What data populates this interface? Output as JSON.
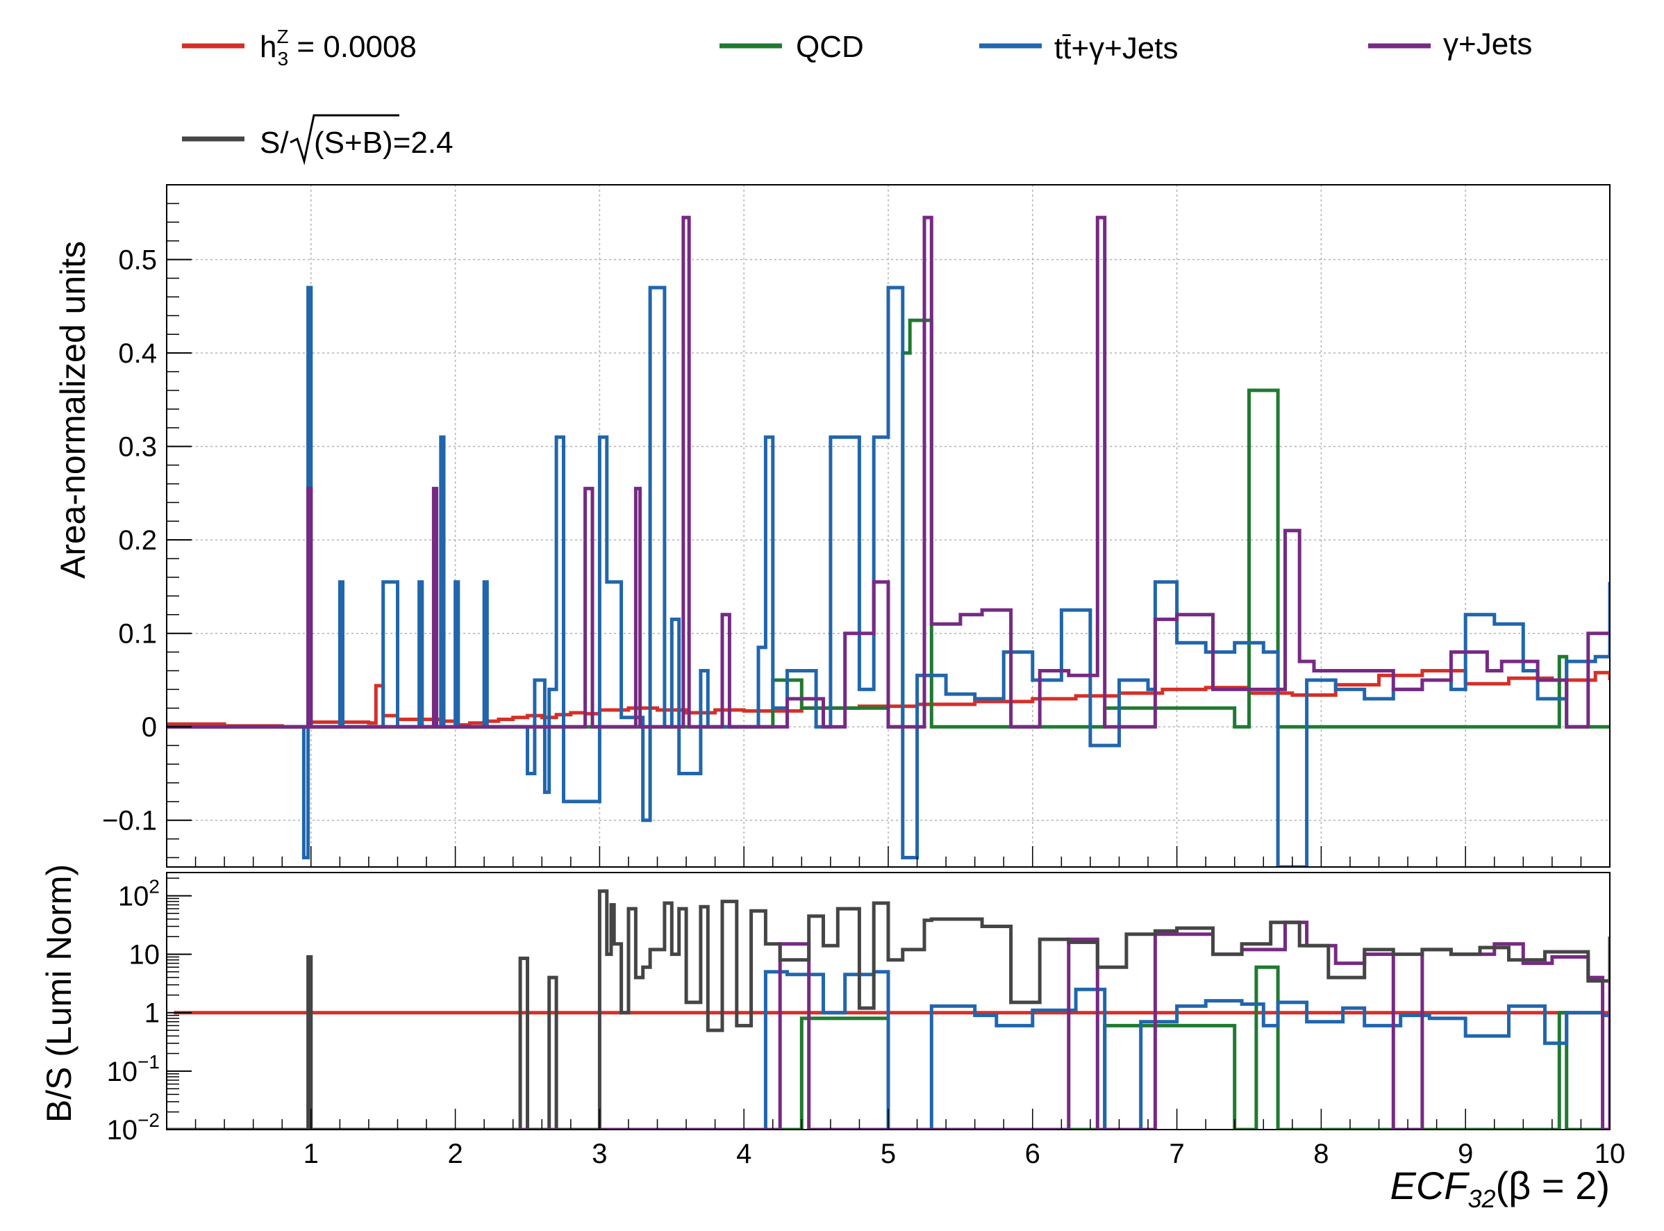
{
  "legend": {
    "signal_h": "h",
    "signal_sup": "Z",
    "signal_sub": "3",
    "signal_value": " = 0.0008",
    "qcd": "QCD",
    "ttgamma": "tt̄+γ+Jets",
    "gammajets": "γ+Jets",
    "significance_prefix": "S/",
    "significance_radicand": "(S+B)=2.4"
  },
  "chart_data": [
    {
      "type": "line",
      "panel": "top",
      "ylabel": "Area-normalized units",
      "xlim": [
        0,
        10
      ],
      "ylim": [
        -0.15,
        0.58
      ],
      "grid": true,
      "legend_position": "top",
      "x_ticks": [
        "1",
        "2",
        "3",
        "4",
        "5",
        "6",
        "7",
        "8",
        "9",
        "10"
      ],
      "y_ticks": [
        {
          "value": -0.1,
          "label": "−0.1"
        },
        {
          "value": 0,
          "label": "0"
        },
        {
          "value": 0.1,
          "label": "0.1"
        },
        {
          "value": 0.2,
          "label": "0.2"
        },
        {
          "value": 0.3,
          "label": "0.3"
        },
        {
          "value": 0.4,
          "label": "0.4"
        },
        {
          "value": 0.5,
          "label": "0.5"
        }
      ],
      "series": [
        {
          "name": "h3Z = 0.0008",
          "color": "#d62f27",
          "x": [
            0,
            0.4,
            0.8,
            1.0,
            1.4,
            1.45,
            1.5,
            1.6,
            1.9,
            2.0,
            2.1,
            2.2,
            2.3,
            2.4,
            2.5,
            2.6,
            2.7,
            2.8,
            2.9,
            3.0,
            3.2,
            3.4,
            3.6,
            3.8,
            4.0,
            4.4,
            4.8,
            5.2,
            5.6,
            6.0,
            6.3,
            6.6,
            6.9,
            7.2,
            7.5,
            7.8,
            8.1,
            8.4,
            8.7,
            9.0,
            9.3,
            9.6,
            9.9,
            10.0
          ],
          "y": [
            0.003,
            0.001,
            0.0,
            0.005,
            0.004,
            0.044,
            0.012,
            0.008,
            0.006,
            0.002,
            0.004,
            0.006,
            0.008,
            0.01,
            0.012,
            0.01,
            0.013,
            0.015,
            0.014,
            0.018,
            0.02,
            0.018,
            0.015,
            0.018,
            0.017,
            0.02,
            0.022,
            0.024,
            0.027,
            0.03,
            0.033,
            0.036,
            0.04,
            0.042,
            0.036,
            0.034,
            0.045,
            0.055,
            0.06,
            0.046,
            0.052,
            0.05,
            0.058,
            0.05
          ]
        },
        {
          "name": "QCD",
          "color": "#1f7a30",
          "x": [
            0,
            4.0,
            4.2,
            4.4,
            5.0,
            5.1,
            5.15,
            5.3,
            6.3,
            6.5,
            7.4,
            7.5,
            7.7,
            9.5,
            9.65,
            9.7,
            10.0
          ],
          "y": [
            0.0,
            0.0,
            0.05,
            0.02,
            0.0,
            0.4,
            0.435,
            0.0,
            0.0,
            0.02,
            0.0,
            0.36,
            0.0,
            0.0,
            0.075,
            0.0,
            0.0
          ],
          "labels": [
            " ",
            " ",
            " ",
            " ",
            " ",
            " ",
            " ",
            " ",
            " ",
            " ",
            " ",
            " ",
            " ",
            " ",
            " ",
            " ",
            " "
          ]
        },
        {
          "name": "tt̄+γ+Jets",
          "color": "#2166ac",
          "x": [
            0,
            0.95,
            0.98,
            1.0,
            1.02,
            1.2,
            1.22,
            1.5,
            1.6,
            1.62,
            1.75,
            1.77,
            1.9,
            1.92,
            2.0,
            2.02,
            2.2,
            2.22,
            2.5,
            2.55,
            2.62,
            2.65,
            2.7,
            2.75,
            3.0,
            3.05,
            3.1,
            3.15,
            3.3,
            3.35,
            3.45,
            3.5,
            3.55,
            3.7,
            3.75,
            4.0,
            4.1,
            4.15,
            4.2,
            4.3,
            4.5,
            4.6,
            4.8,
            4.9,
            5.0,
            5.1,
            5.2,
            5.4,
            5.6,
            5.8,
            6.0,
            6.2,
            6.4,
            6.6,
            6.8,
            6.85,
            7.0,
            7.2,
            7.4,
            7.6,
            7.7,
            7.9,
            8.1,
            8.3,
            8.5,
            8.7,
            8.9,
            9.0,
            9.2,
            9.4,
            9.5,
            9.7,
            9.9,
            10.0
          ],
          "y": [
            0.0,
            -0.14,
            0.47,
            0.0,
            0.0,
            0.155,
            0.0,
            0.155,
            0.0,
            0.0,
            0.155,
            0.0,
            0.31,
            0.0,
            0.155,
            0.0,
            0.155,
            0.0,
            -0.05,
            0.05,
            -0.07,
            0.04,
            0.31,
            -0.08,
            0.31,
            0.155,
            0.155,
            0.01,
            -0.1,
            0.47,
            0.0,
            0.115,
            -0.05,
            0.06,
            0.0,
            0.0,
            0.085,
            0.31,
            0.02,
            0.06,
            0.0,
            0.31,
            0.04,
            0.31,
            0.47,
            -0.14,
            0.055,
            0.035,
            0.03,
            0.08,
            0.05,
            0.125,
            -0.02,
            0.05,
            0.04,
            0.155,
            0.09,
            0.08,
            0.09,
            0.08,
            -0.15,
            0.05,
            0.04,
            0.03,
            0.04,
            0.05,
            0.04,
            0.12,
            0.11,
            0.06,
            0.03,
            0.07,
            0.075,
            0.155
          ],
          "labels": [
            " ",
            " ",
            " ",
            " ",
            " ",
            " ",
            " ",
            " ",
            " ",
            " ",
            " ",
            " ",
            " ",
            " ",
            " ",
            " ",
            " ",
            " ",
            " ",
            " ",
            " ",
            " ",
            " ",
            " ",
            " ",
            " ",
            " ",
            " ",
            " ",
            " ",
            " ",
            " ",
            " ",
            " ",
            " ",
            " ",
            " ",
            " ",
            " ",
            " ",
            " ",
            " ",
            " ",
            " ",
            " ",
            " ",
            " ",
            " ",
            " ",
            " ",
            " ",
            " ",
            " ",
            " ",
            " ",
            " ",
            " ",
            " ",
            " ",
            " ",
            " ",
            " ",
            " ",
            " ",
            " ",
            " ",
            " ",
            " ",
            " ",
            " ",
            " ",
            " ",
            " ",
            " "
          ]
        },
        {
          "name": "γ+Jets",
          "color": "#762a83",
          "x": [
            0,
            0.98,
            1.0,
            1.02,
            1.85,
            1.87,
            2.9,
            2.95,
            3.25,
            3.28,
            3.45,
            3.58,
            3.62,
            3.85,
            3.9,
            4.05,
            4.3,
            4.55,
            4.7,
            4.9,
            5.0,
            5.25,
            5.3,
            5.5,
            5.65,
            5.85,
            6.05,
            6.25,
            6.45,
            6.5,
            6.85,
            7.0,
            7.25,
            7.45,
            7.75,
            7.85,
            7.95,
            8.2,
            8.5,
            8.7,
            8.9,
            9.15,
            9.25,
            9.5,
            9.7,
            9.85,
            10.0
          ],
          "y": [
            0.0,
            0.255,
            0.0,
            0.0,
            0.255,
            0.0,
            0.255,
            0.0,
            0.255,
            0.0,
            0.0,
            0.545,
            0.0,
            0.12,
            0.0,
            0.0,
            0.03,
            0.0,
            0.1,
            0.155,
            0.0,
            0.545,
            0.11,
            0.12,
            0.125,
            0.0,
            0.06,
            0.055,
            0.545,
            0.0,
            0.115,
            0.12,
            0.04,
            0.04,
            0.21,
            0.07,
            0.06,
            0.06,
            0.04,
            0.05,
            0.08,
            0.06,
            0.07,
            0.05,
            0.0,
            0.1,
            0.1
          ],
          "labels": [
            " ",
            " ",
            " ",
            " ",
            " ",
            " ",
            " ",
            " ",
            " ",
            " ",
            " ",
            " ",
            " ",
            " ",
            " ",
            " ",
            " ",
            " ",
            " ",
            " ",
            " ",
            " ",
            " ",
            " ",
            " ",
            " ",
            " ",
            " ",
            " ",
            " ",
            " ",
            " ",
            " ",
            " ",
            " ",
            " ",
            " ",
            " ",
            " ",
            " ",
            " ",
            " ",
            " ",
            " ",
            " ",
            " ",
            " "
          ]
        }
      ]
    },
    {
      "type": "line",
      "panel": "bottom",
      "ylabel": "B/S (Lumi Norm)",
      "xlabel_base": "ECF",
      "xlabel_sub": "32",
      "xlabel_rest": "(β = 2)",
      "xlim": [
        0,
        10
      ],
      "ylim": [
        0.01,
        250
      ],
      "log_y": true,
      "grid": false,
      "x_ticks": [
        "1",
        "2",
        "3",
        "4",
        "5",
        "6",
        "7",
        "8",
        "9",
        "10"
      ],
      "y_ticks": [
        {
          "value": 0.01,
          "base": "10",
          "exp": "−2"
        },
        {
          "value": 0.1,
          "base": "10",
          "exp": "−1"
        },
        {
          "value": 1,
          "label": "1"
        },
        {
          "value": 10,
          "label": "10"
        },
        {
          "value": 100,
          "base": "10",
          "exp": "2"
        }
      ],
      "series": [
        {
          "name": "h3Z = 0.0008",
          "color": "#d62f27",
          "x": [
            0.05,
            9.95
          ],
          "y": [
            1.0,
            1.0
          ]
        },
        {
          "name": "QCD",
          "color": "#1f7a30",
          "x": [
            0,
            4.1,
            4.4,
            5.0,
            6.3,
            6.5,
            7.4,
            7.55,
            7.7,
            9.55,
            9.65,
            9.7,
            10.0
          ],
          "y": [
            0.01,
            0.01,
            0.8,
            0.01,
            0.01,
            0.6,
            0.01,
            6.0,
            0.01,
            0.01,
            1.0,
            0.01,
            0.01
          ]
        },
        {
          "name": "tt̄+γ+Jets",
          "color": "#2166ac",
          "x": [
            4.0,
            4.15,
            4.3,
            4.55,
            4.7,
            4.9,
            5.0,
            5.3,
            5.6,
            5.75,
            6.0,
            6.3,
            6.5,
            6.75,
            7.0,
            7.2,
            7.45,
            7.6,
            7.7,
            7.9,
            8.15,
            8.3,
            8.55,
            8.75,
            9.0,
            9.3,
            9.55,
            9.7,
            9.95,
            10.0
          ],
          "y": [
            0.01,
            5.0,
            4.5,
            1.0,
            4.5,
            5.0,
            0.01,
            1.3,
            0.9,
            0.6,
            1.1,
            2.5,
            0.01,
            0.7,
            1.3,
            1.6,
            1.4,
            0.6,
            1.5,
            0.7,
            1.2,
            0.6,
            0.9,
            0.8,
            0.4,
            1.3,
            0.3,
            1.0,
            0.9,
            2.5
          ],
          "labels": [
            " ",
            " ",
            " ",
            " ",
            " ",
            " ",
            " ",
            " ",
            " ",
            " ",
            " ",
            " ",
            " ",
            " ",
            " ",
            " ",
            " ",
            " ",
            " ",
            " ",
            " ",
            " ",
            " ",
            " ",
            " ",
            " ",
            " ",
            " ",
            " ",
            " "
          ]
        },
        {
          "name": "γ+Jets",
          "color": "#762a83",
          "x": [
            0,
            4.0,
            4.25,
            4.45,
            6.05,
            6.25,
            6.45,
            6.85,
            7.25,
            7.45,
            7.75,
            7.9,
            8.1,
            8.3,
            8.5,
            8.7,
            8.9,
            9.2,
            9.4,
            9.6,
            9.85,
            9.95,
            10.0
          ],
          "y": [
            0.01,
            0.01,
            15.0,
            0.01,
            0.01,
            18.0,
            0.01,
            22.0,
            10.0,
            12.0,
            35.0,
            14.0,
            7.0,
            10.0,
            0.01,
            12.0,
            10.0,
            15.0,
            7.0,
            9.0,
            4.0,
            0.01,
            18.0
          ],
          "labels": [
            " ",
            " ",
            " ",
            " ",
            " ",
            " ",
            " ",
            " ",
            " ",
            " ",
            " ",
            " ",
            " ",
            " ",
            " ",
            " ",
            " ",
            " ",
            " ",
            " ",
            " ",
            " ",
            " "
          ]
        },
        {
          "name": "S/√(S+B)=2.4",
          "color": "#454545",
          "x": [
            0,
            0.98,
            1.0,
            2.45,
            2.5,
            2.65,
            2.7,
            3.0,
            3.05,
            3.08,
            3.1,
            3.15,
            3.2,
            3.25,
            3.3,
            3.35,
            3.45,
            3.5,
            3.55,
            3.6,
            3.7,
            3.75,
            3.85,
            3.95,
            4.05,
            4.15,
            4.25,
            4.45,
            4.55,
            4.65,
            4.8,
            4.9,
            5.0,
            5.1,
            5.25,
            5.3,
            5.65,
            5.85,
            6.05,
            6.25,
            6.45,
            6.65,
            6.85,
            7.0,
            7.25,
            7.45,
            7.65,
            7.85,
            8.05,
            8.3,
            8.5,
            8.7,
            8.9,
            9.1,
            9.3,
            9.55,
            9.85,
            10.0
          ],
          "y": [
            0.01,
            9.0,
            0.01,
            8.5,
            0.01,
            4.0,
            0.01,
            120.0,
            10.0,
            70.0,
            15.0,
            1.0,
            60.0,
            4.0,
            6.0,
            12.0,
            75.0,
            10.0,
            60.0,
            1.5,
            65.0,
            0.5,
            80.0,
            0.6,
            55.0,
            15.0,
            8.0,
            45.0,
            14.0,
            60.0,
            1.2,
            75.0,
            8.0,
            12.0,
            38.0,
            40.0,
            30.0,
            1.5,
            18.0,
            16.0,
            6.0,
            22.0,
            25.0,
            28.0,
            10.0,
            15.0,
            35.0,
            14.0,
            4.0,
            12.0,
            10.0,
            12.0,
            10.0,
            13.0,
            8.0,
            11.0,
            3.5,
            20.0
          ],
          "labels": [
            " ",
            " ",
            " ",
            " ",
            " ",
            " ",
            " ",
            " ",
            " ",
            " ",
            " ",
            " ",
            " ",
            " ",
            " ",
            " ",
            " ",
            " ",
            " ",
            " ",
            " ",
            " ",
            " ",
            " ",
            " ",
            " ",
            " ",
            " ",
            " ",
            " ",
            " ",
            " ",
            " ",
            " ",
            " ",
            " ",
            " ",
            " ",
            " ",
            " ",
            " ",
            " ",
            " ",
            " ",
            " ",
            " ",
            " ",
            " ",
            " ",
            " ",
            " ",
            " ",
            " ",
            " ",
            " ",
            " ",
            " ",
            " "
          ]
        }
      ]
    }
  ]
}
